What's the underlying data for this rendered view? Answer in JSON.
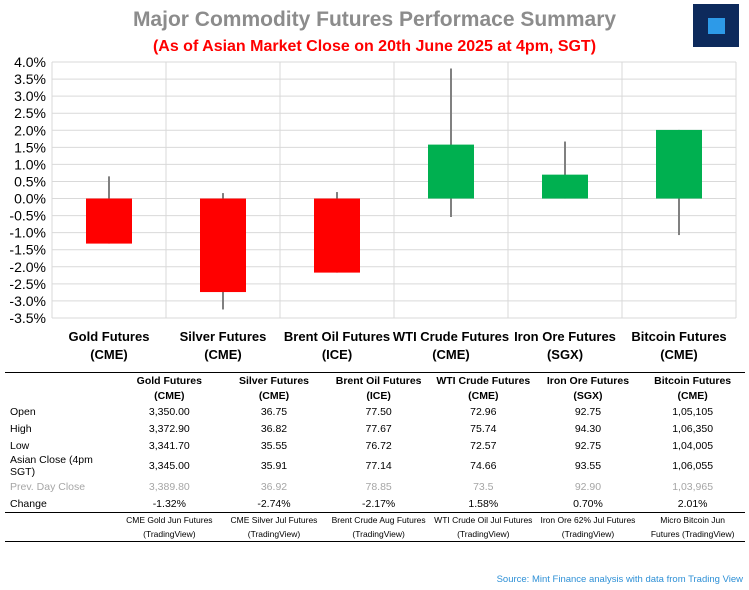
{
  "title": "Major Commodity Futures Performace Summary",
  "subtitle": "(As of Asian Market Close on 20th June 2025 at 4pm, SGT)",
  "logo_icon": "square-logo-icon",
  "colors": {
    "up": "#00b050",
    "down": "#ff0000",
    "grid": "#d9d9d9",
    "title": "#8c8c8c",
    "subtitle": "#ff0000",
    "source": "#2e90d6"
  },
  "chart_data": {
    "type": "candlestick",
    "title": "Major Commodity Futures Performace Summary",
    "subtitle": "(As of Asian Market Close on 20th June 2025 at 4pm, SGT)",
    "categories": [
      [
        "Gold Futures",
        "(CME)"
      ],
      [
        "Silver Futures",
        "(CME)"
      ],
      [
        "Brent Oil Futures",
        "(ICE)"
      ],
      [
        "WTI Crude Futures",
        "(CME)"
      ],
      [
        "Iron Ore Futures",
        "(SGX)"
      ],
      [
        "Bitcoin Futures",
        "(CME)"
      ]
    ],
    "candles": [
      {
        "open": 0.0,
        "close": -1.32,
        "high": 0.65,
        "low": -1.32
      },
      {
        "open": 0.0,
        "close": -2.74,
        "high": 0.16,
        "low": -3.25
      },
      {
        "open": 0.0,
        "close": -2.17,
        "high": 0.19,
        "low": -2.17
      },
      {
        "open": 0.0,
        "close": 1.58,
        "high": 3.81,
        "low": -0.54
      },
      {
        "open": 0.0,
        "close": 0.7,
        "high": 1.67,
        "low": 0.0
      },
      {
        "open": 0.0,
        "close": 2.01,
        "high": 2.01,
        "low": -1.07
      }
    ],
    "ylim": [
      -3.5,
      4.0
    ],
    "yticks": [
      "4.0%",
      "3.5%",
      "3.0%",
      "2.5%",
      "2.0%",
      "1.5%",
      "1.0%",
      "0.5%",
      "0.0%",
      "-0.5%",
      "-1.0%",
      "-1.5%",
      "-2.0%",
      "-2.5%",
      "-3.0%",
      "-3.5%"
    ],
    "ytick_values": [
      4.0,
      3.5,
      3.0,
      2.5,
      2.0,
      1.5,
      1.0,
      0.5,
      0.0,
      -0.5,
      -1.0,
      -1.5,
      -2.0,
      -2.5,
      -3.0,
      -3.5
    ],
    "grid": true
  },
  "table": {
    "headers": [
      [
        "Gold Futures",
        "(CME)"
      ],
      [
        "Silver Futures",
        "(CME)"
      ],
      [
        "Brent Oil Futures",
        "(ICE)"
      ],
      [
        "WTI Crude Futures",
        "(CME)"
      ],
      [
        "Iron Ore Futures",
        "(SGX)"
      ],
      [
        "Bitcoin Futures",
        "(CME)"
      ]
    ],
    "rows": [
      {
        "label": "Open",
        "values": [
          "3,350.00",
          "36.75",
          "77.50",
          "72.96",
          "92.75",
          "1,05,105"
        ]
      },
      {
        "label": "High",
        "values": [
          "3,372.90",
          "36.82",
          "77.67",
          "75.74",
          "94.30",
          "1,06,350"
        ]
      },
      {
        "label": "Low",
        "values": [
          "3,341.70",
          "35.55",
          "76.72",
          "72.57",
          "92.75",
          "1,04,005"
        ]
      },
      {
        "label": "Asian Close (4pm SGT)",
        "values": [
          "3,345.00",
          "35.91",
          "77.14",
          "74.66",
          "93.55",
          "1,06,055"
        ]
      },
      {
        "label": "Prev. Day Close",
        "values": [
          "3,389.80",
          "36.92",
          "78.85",
          "73.5",
          "92.90",
          "1,03,965"
        ]
      },
      {
        "label": "Change",
        "values": [
          "-1.32%",
          "-2.74%",
          "-2.17%",
          "1.58%",
          "0.70%",
          "2.01%"
        ]
      }
    ],
    "sources": [
      [
        "CME Gold Jun Futures",
        "(TradingView)"
      ],
      [
        "CME Silver Jul Futures",
        "(TradingView)"
      ],
      [
        "Brent Crude Aug Futures",
        "(TradingView)"
      ],
      [
        "WTI Crude Oil Jul Futures",
        "(TradingView)"
      ],
      [
        "Iron Ore 62% Jul Futures",
        "(TradingView)"
      ],
      [
        "Micro Bitcoin Jun",
        "Futures (TradingView)"
      ]
    ]
  },
  "source_note": "Source: Mint Finance analysis with data from Trading View"
}
